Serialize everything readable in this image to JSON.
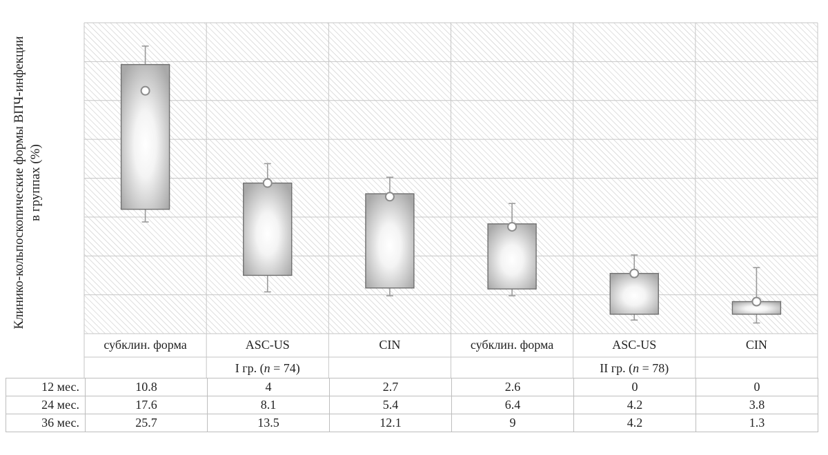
{
  "y_axis_label": {
    "line1": "Клинико-кольпоскопические формы ВПЧ-инфекции",
    "line2": "в группах (%)"
  },
  "chart_data": {
    "type": "box",
    "ylabel": "Клинико-кольпоскопические формы ВПЧ-инфекции в группах (%)",
    "yticks_labeled": false,
    "grid": true,
    "categories": [
      "субклин. форма",
      "ASC-US",
      "CIN",
      "субклин. форма",
      "ASC-US",
      "CIN"
    ],
    "groups": [
      {
        "label_prefix": "I гр. (",
        "n_symbol": "n",
        "label_suffix": " = 74)",
        "categories": [
          0,
          1,
          2
        ]
      },
      {
        "label_prefix": "II гр. (",
        "n_symbol": "n",
        "label_suffix": " = 78)",
        "categories": [
          3,
          4,
          5
        ]
      }
    ],
    "boxes": [
      {
        "whisker_low": 9.5,
        "q1": 10.8,
        "median": 23.0,
        "q3": 25.7,
        "whisker_high": 27.6
      },
      {
        "whisker_low": 2.3,
        "q1": 4.0,
        "median": 13.5,
        "q3": 13.5,
        "whisker_high": 15.5
      },
      {
        "whisker_low": 1.9,
        "q1": 2.7,
        "median": 12.1,
        "q3": 12.4,
        "whisker_high": 14.1
      },
      {
        "whisker_low": 1.9,
        "q1": 2.6,
        "median": 9.0,
        "q3": 9.3,
        "whisker_high": 11.4
      },
      {
        "whisker_low": -0.6,
        "q1": 0.0,
        "median": 4.2,
        "q3": 4.2,
        "whisker_high": 6.1
      },
      {
        "whisker_low": -0.9,
        "q1": 0.0,
        "median": 1.3,
        "q3": 1.3,
        "whisker_high": 4.8
      }
    ],
    "table": {
      "rows": [
        {
          "label": "12 мес.",
          "values": [
            "10.8",
            "4",
            "2.7",
            "2.6",
            "0",
            "0"
          ]
        },
        {
          "label": "24 мес.",
          "values": [
            "17.6",
            "8.1",
            "5.4",
            "6.4",
            "4.2",
            "3.8"
          ]
        },
        {
          "label": "36 мес.",
          "values": [
            "25.7",
            "13.5",
            "12.1",
            "9",
            "4.2",
            "1.3"
          ]
        }
      ]
    }
  }
}
